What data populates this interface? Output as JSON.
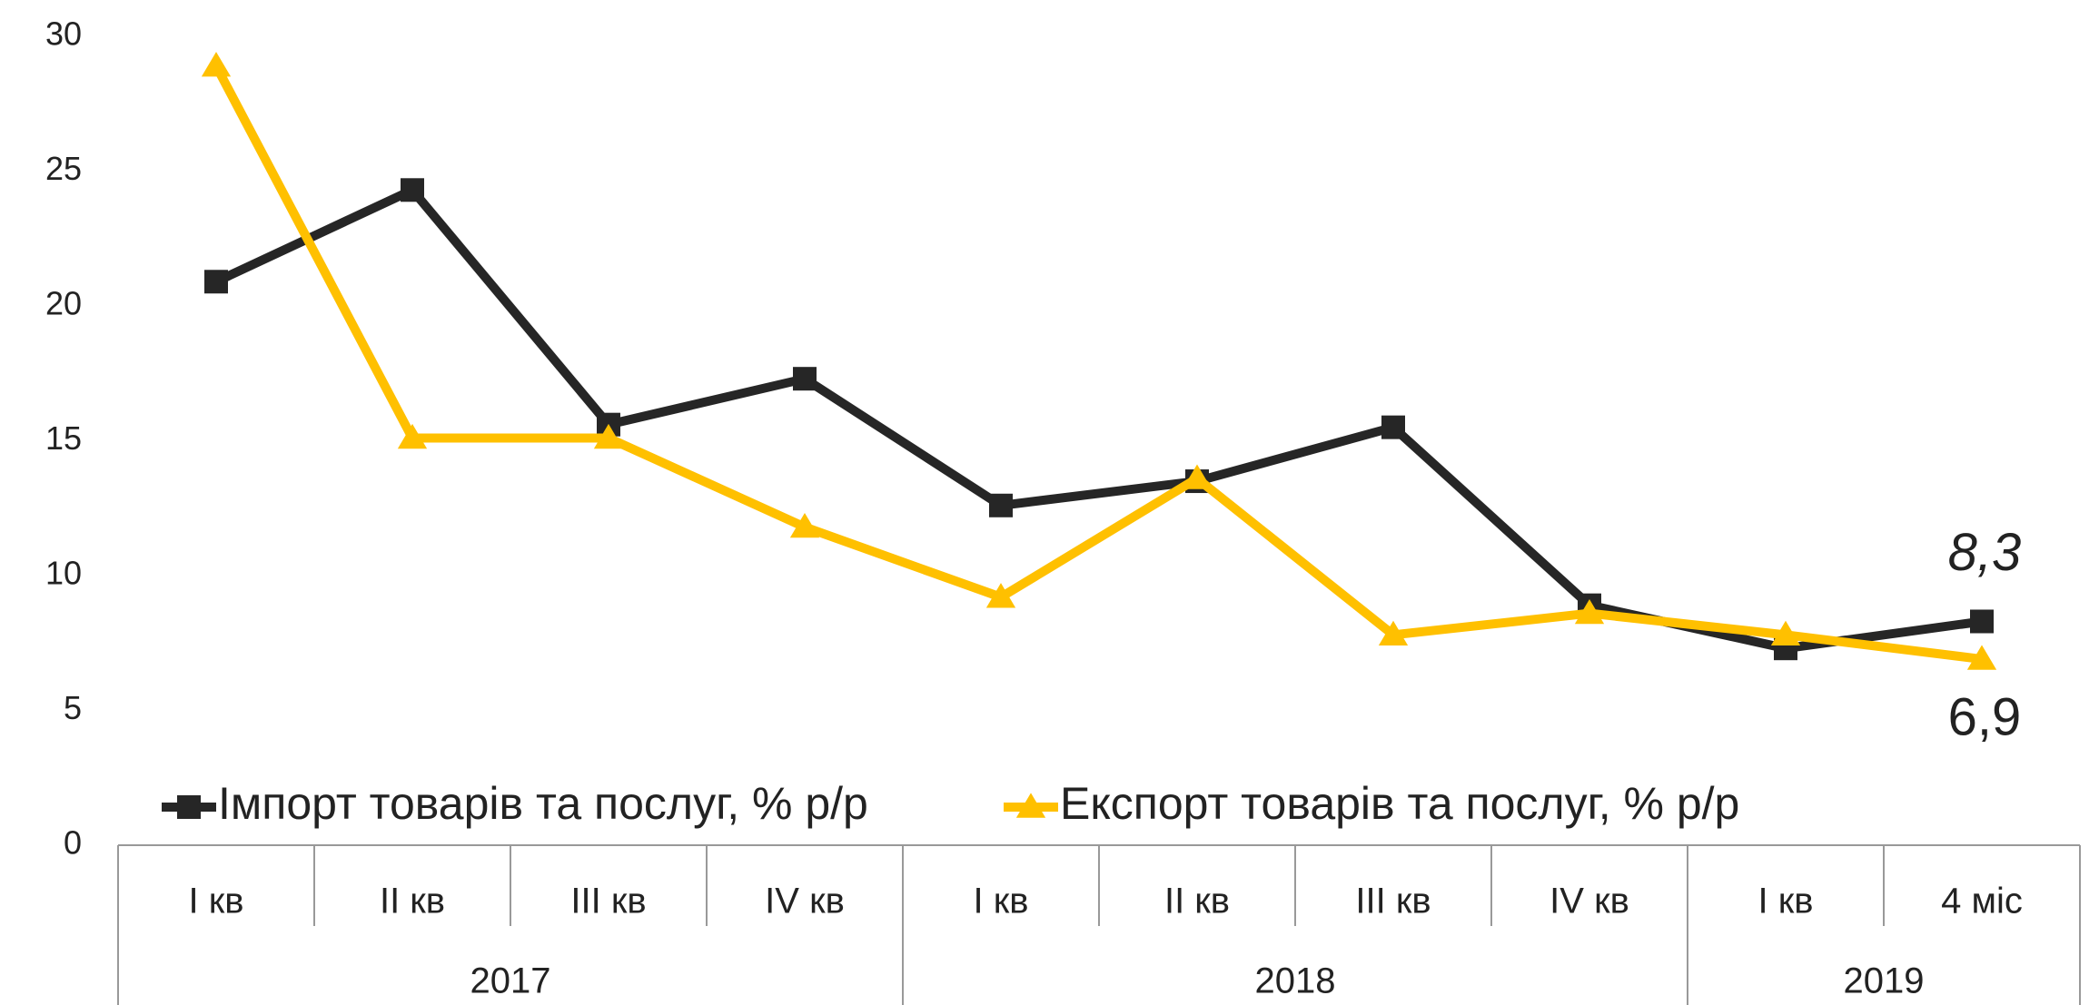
{
  "chart_data": {
    "type": "line",
    "groups": [
      {
        "name": "2017",
        "categories": [
          "I кв",
          "II кв",
          "III кв",
          "IV кв"
        ]
      },
      {
        "name": "2018",
        "categories": [
          "I кв",
          "II кв",
          "III кв",
          "IV кв"
        ]
      },
      {
        "name": "2019",
        "categories": [
          "I кв",
          "4 міс"
        ]
      }
    ],
    "series": [
      {
        "name": "Імпорт товарів та послуг, % р/р",
        "color": "#262626",
        "marker": "square",
        "values": [
          20.9,
          24.3,
          15.6,
          17.3,
          12.6,
          13.5,
          15.5,
          8.9,
          7.3,
          8.3
        ],
        "value_labels": [
          null,
          null,
          null,
          null,
          null,
          null,
          null,
          null,
          null,
          "8,3"
        ],
        "label_color": "#000000"
      },
      {
        "name": "Експорт товарів та послуг, % р/р",
        "color": "#ffc000",
        "marker": "triangle",
        "values": [
          28.9,
          15.1,
          15.1,
          11.8,
          9.2,
          13.6,
          7.8,
          8.6,
          7.8,
          6.9
        ],
        "value_labels": [
          null,
          null,
          null,
          null,
          null,
          null,
          null,
          null,
          null,
          "6,9"
        ],
        "label_color": "#8a7a00"
      }
    ],
    "ylim": [
      0,
      30
    ],
    "yticks": [
      0,
      5,
      10,
      15,
      20,
      25,
      30
    ],
    "grid": false
  }
}
